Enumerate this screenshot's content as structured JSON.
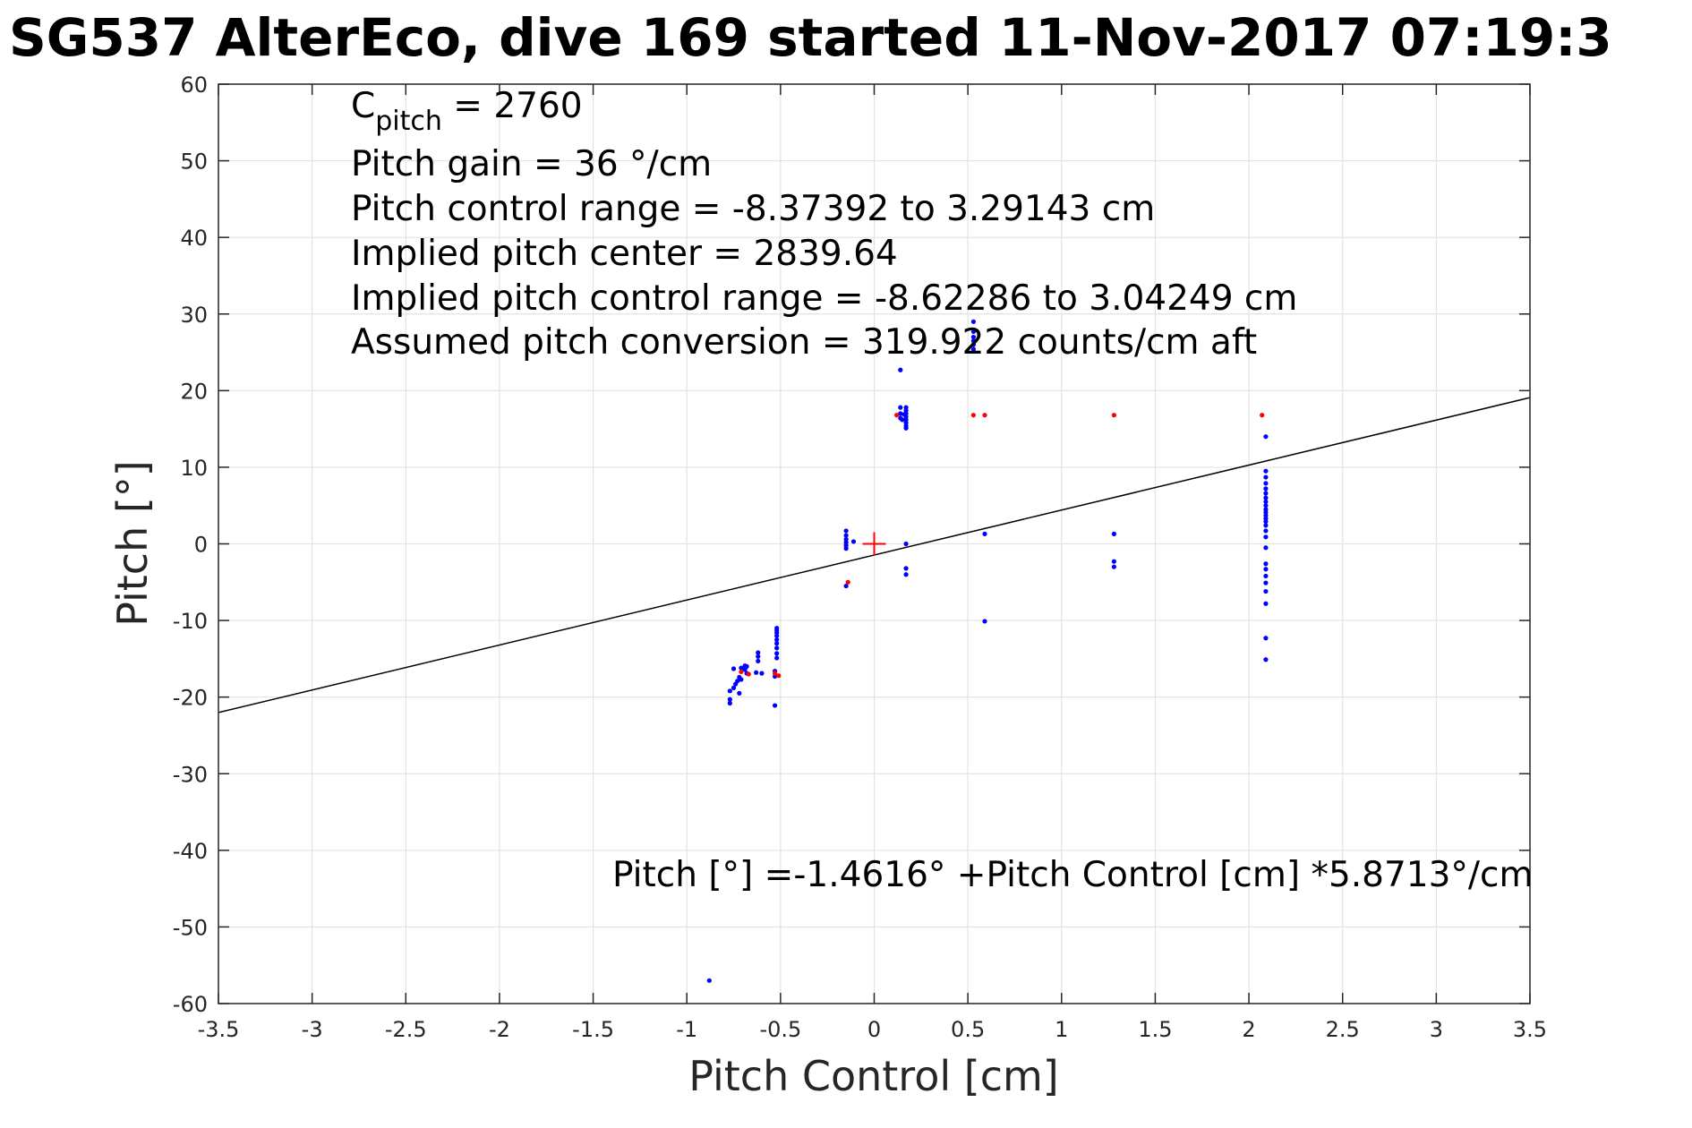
{
  "chart_data": {
    "type": "scatter",
    "title": "SG537 AlterEco, dive 169 started 11-Nov-2017 07:19:3",
    "xlabel": "Pitch Control [cm]",
    "ylabel": "Pitch [°]",
    "xlim": [
      -3.5,
      3.5
    ],
    "ylim": [
      -60,
      60
    ],
    "grid": true,
    "x_ticks": [
      -3.5,
      -3,
      -2.5,
      -2,
      -1.5,
      -1,
      -0.5,
      0,
      0.5,
      1,
      1.5,
      2,
      2.5,
      3,
      3.5
    ],
    "x_tick_labels": [
      "-3.5",
      "-3",
      "-2.5",
      "-2",
      "-1.5",
      "-1",
      "-0.5",
      "0",
      "0.5",
      "1",
      "1.5",
      "2",
      "2.5",
      "3",
      "3.5"
    ],
    "y_ticks": [
      -60,
      -50,
      -40,
      -30,
      -20,
      -10,
      0,
      10,
      20,
      30,
      40,
      50,
      60
    ],
    "y_tick_labels": [
      "-60",
      "-50",
      "-40",
      "-30",
      "-20",
      "-10",
      "0",
      "10",
      "20",
      "30",
      "40",
      "50",
      "60"
    ],
    "series": [
      {
        "color": "#0000ff",
        "marker": "dot",
        "points": [
          [
            -0.88,
            -57
          ],
          [
            -0.77,
            -20.8
          ],
          [
            -0.77,
            -20.3
          ],
          [
            -0.77,
            -19.2
          ],
          [
            -0.75,
            -16.3
          ],
          [
            -0.75,
            -18.8
          ],
          [
            -0.74,
            -18.3
          ],
          [
            -0.73,
            -17.9
          ],
          [
            -0.72,
            -19.5
          ],
          [
            -0.72,
            -17.4
          ],
          [
            -0.71,
            -17.7
          ],
          [
            -0.71,
            -16.2
          ],
          [
            -0.69,
            -16.4
          ],
          [
            -0.69,
            -15.9
          ],
          [
            -0.68,
            -16.9
          ],
          [
            -0.68,
            -16.0
          ],
          [
            -0.63,
            -16.8
          ],
          [
            -0.62,
            -15.3
          ],
          [
            -0.62,
            -14.7
          ],
          [
            -0.62,
            -14.2
          ],
          [
            -0.6,
            -16.9
          ],
          [
            -0.53,
            -21.1
          ],
          [
            -0.53,
            -17.3
          ],
          [
            -0.53,
            -16.6
          ],
          [
            -0.52,
            -14.9
          ],
          [
            -0.52,
            -14.3
          ],
          [
            -0.52,
            -13.6
          ],
          [
            -0.52,
            -13.0
          ],
          [
            -0.52,
            -12.5
          ],
          [
            -0.52,
            -12.0
          ],
          [
            -0.52,
            -11.6
          ],
          [
            -0.52,
            -11.3
          ],
          [
            -0.52,
            -11.0
          ],
          [
            -0.15,
            -5.5
          ],
          [
            -0.15,
            1.7
          ],
          [
            -0.15,
            1.1
          ],
          [
            -0.15,
            0.6
          ],
          [
            -0.15,
            0.2
          ],
          [
            -0.15,
            -0.2
          ],
          [
            -0.15,
            -0.6
          ],
          [
            -0.11,
            0.3
          ],
          [
            0.14,
            22.7
          ],
          [
            0.14,
            17.8
          ],
          [
            0.14,
            17.0
          ],
          [
            0.14,
            16.4
          ],
          [
            0.15,
            16.2
          ],
          [
            0.16,
            16.9
          ],
          [
            0.17,
            17.8
          ],
          [
            0.17,
            17.4
          ],
          [
            0.17,
            17.0
          ],
          [
            0.17,
            16.6
          ],
          [
            0.17,
            16.2
          ],
          [
            0.17,
            15.8
          ],
          [
            0.17,
            15.4
          ],
          [
            0.17,
            15.1
          ],
          [
            0.17,
            0.0
          ],
          [
            0.17,
            -3.2
          ],
          [
            0.17,
            -4.0
          ],
          [
            0.53,
            29.0
          ],
          [
            0.53,
            27.7
          ],
          [
            0.53,
            27.0
          ],
          [
            0.53,
            26.5
          ],
          [
            0.53,
            26.0
          ],
          [
            0.53,
            25.4
          ],
          [
            0.59,
            1.3
          ],
          [
            0.59,
            -10.1
          ],
          [
            1.28,
            1.3
          ],
          [
            1.28,
            -2.3
          ],
          [
            1.28,
            -3.0
          ],
          [
            2.09,
            14.0
          ],
          [
            2.09,
            9.5
          ],
          [
            2.09,
            8.7
          ],
          [
            2.09,
            7.9
          ],
          [
            2.09,
            7.2
          ],
          [
            2.09,
            6.6
          ],
          [
            2.09,
            6.0
          ],
          [
            2.09,
            5.5
          ],
          [
            2.09,
            5.0
          ],
          [
            2.09,
            4.5
          ],
          [
            2.09,
            4.1
          ],
          [
            2.09,
            3.7
          ],
          [
            2.09,
            3.3
          ],
          [
            2.09,
            2.9
          ],
          [
            2.09,
            2.4
          ],
          [
            2.09,
            1.7
          ],
          [
            2.09,
            0.9
          ],
          [
            2.09,
            -0.5
          ],
          [
            2.09,
            -2.6
          ],
          [
            2.09,
            -3.3
          ],
          [
            2.09,
            -4.2
          ],
          [
            2.09,
            -5.1
          ],
          [
            2.09,
            -6.2
          ],
          [
            2.09,
            -7.8
          ],
          [
            2.09,
            -12.3
          ],
          [
            2.09,
            -15.1
          ]
        ]
      },
      {
        "color": "#ff0000",
        "marker": "dot",
        "points": [
          [
            -0.71,
            -16.7
          ],
          [
            -0.67,
            -17.0
          ],
          [
            -0.53,
            -16.9
          ],
          [
            -0.51,
            -17.2
          ],
          [
            -0.14,
            -5.0
          ],
          [
            0.12,
            16.8
          ],
          [
            0.53,
            16.8
          ],
          [
            0.59,
            16.8
          ],
          [
            1.28,
            16.8
          ],
          [
            2.07,
            16.8
          ]
        ]
      }
    ],
    "center_marker": {
      "x": 0,
      "y": 0,
      "color": "#ff0000",
      "marker": "plus"
    },
    "fit_line": {
      "intercept": -1.4616,
      "slope": 5.8713,
      "color": "#000000"
    },
    "annotations": {
      "c_pitch_main": "C",
      "c_pitch_sub": "pitch",
      "c_pitch_value": " = 2760",
      "pitch_gain": "Pitch gain = 36 °/cm",
      "control_range": "Pitch control range = -8.37392 to 3.29143 cm",
      "implied_center": "Implied pitch center = 2839.64",
      "implied_range": "Implied pitch control range = -8.62286 to 3.04249 cm",
      "conversion": "Assumed pitch conversion = 319.922 counts/cm aft",
      "fit_equation": "Pitch [°] =-1.4616° +Pitch Control [cm] *5.8713°/cm"
    }
  }
}
